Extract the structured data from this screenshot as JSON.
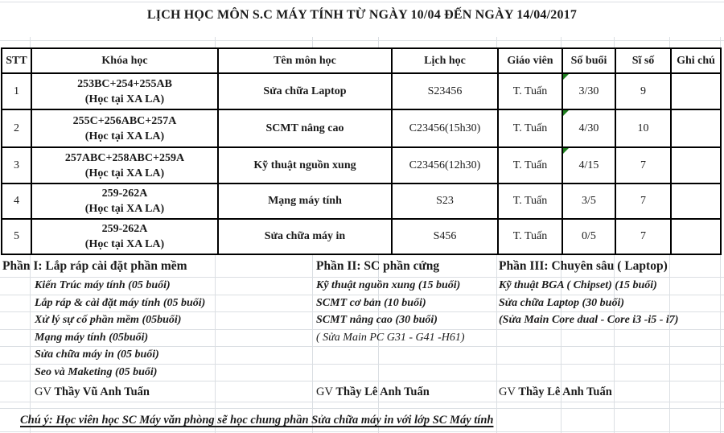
{
  "title": "LỊCH HỌC MÔN S.C MÁY TÍNH TỪ NGÀY 10/04 ĐẾN NGÀY 14/04/2017",
  "colors": {
    "border": "#000000",
    "gridline": "#dbdfe3",
    "flag_green": "#1e7d1e",
    "text": "#1b1b1b"
  },
  "table": {
    "headers": [
      "STT",
      "Khóa học",
      "Tên môn học",
      "Lịch học",
      "Giáo viên",
      "Số buổi",
      "Sĩ số",
      "Ghi chú"
    ],
    "rows": [
      {
        "stt": "1",
        "khoa1": "253BC+254+255AB",
        "khoa2": "(Học tại XA LA)",
        "mon": "Sửa chữa Laptop",
        "lich": "S23456",
        "giao_vien": "T. Tuấn",
        "so_buoi": "3/30",
        "si_so": "9",
        "ghi_chu": "",
        "error_flag": true
      },
      {
        "stt": "2",
        "khoa1": "255C+256ABC+257A",
        "khoa2": "(Học tại XA LA)",
        "mon": "SCMT nâng cao",
        "lich": "C23456(15h30)",
        "giao_vien": "T. Tuấn",
        "so_buoi": "4/30",
        "si_so": "10",
        "ghi_chu": "",
        "error_flag": true
      },
      {
        "stt": "3",
        "khoa1": "257ABC+258ABC+259A",
        "khoa2": "(Học tại XA LA)",
        "mon": "Kỹ thuật nguồn xung",
        "lich": "C23456(12h30)",
        "giao_vien": "T. Tuấn",
        "so_buoi": "4/15",
        "si_so": "7",
        "ghi_chu": "",
        "error_flag": true
      },
      {
        "stt": "4",
        "khoa1": "259-262A",
        "khoa2": "(Học tại XA LA)",
        "mon": "Mạng máy tính",
        "lich": "S23",
        "giao_vien": "T. Tuấn",
        "so_buoi": "3/5",
        "si_so": "7",
        "ghi_chu": "",
        "error_flag": false
      },
      {
        "stt": "5",
        "khoa1": "259-262A",
        "khoa2": "(Học tại XA LA)",
        "mon": "Sửa chữa máy in",
        "lich": "S456",
        "giao_vien": "T. Tuấn",
        "so_buoi": "0/5",
        "si_so": "7",
        "ghi_chu": "",
        "error_flag": false
      }
    ]
  },
  "sections": [
    {
      "heading": "Phần I: Lắp ráp cài đặt phần mềm",
      "items": [
        "Kiến Trúc máy tính (05 buổi)",
        "Lắp ráp & cài đặt máy tính (05 buổi)",
        "Xử lý sự cố phần mềm (05buổi)",
        "Mạng máy tính (05buổi)",
        "Sửa chữa máy in (05 buổi)",
        "Seo và Maketing (05 buổi)"
      ],
      "gv_prefix": "GV",
      "gv_name": "Thầy Vũ Anh Tuấn"
    },
    {
      "heading": "Phần II: SC phần cứng",
      "items": [
        "Kỹ thuật nguồn xung (15 buổi)",
        "SCMT cơ bản (10 buổi)",
        "SCMT nâng cao (30 buổi)",
        "( Sửa Main PC G31 - G41 -H61)"
      ],
      "gv_prefix": "GV",
      "gv_name": "Thầy Lê Anh Tuấn"
    },
    {
      "heading": "Phần III: Chuyên sâu ( Laptop)",
      "items": [
        "Kỹ thuật BGA ( Chipset) (15 buổi)",
        "Sửa chữa Laptop (30 buổi)",
        "(Sửa Main Core dual - Core i3 -i5 - i7)"
      ],
      "gv_prefix": "GV",
      "gv_name": "Thầy Lê Anh Tuấn"
    }
  ],
  "note": {
    "text": "Chú ý: Học viên học SC Máy văn phòng sẽ học chung phần Sửa chữa máy in với lớp SC Máy tính"
  }
}
